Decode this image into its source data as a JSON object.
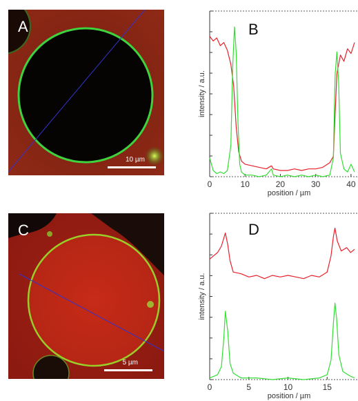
{
  "panels": {
    "a": {
      "letter": "A",
      "scalebar_label": "10 µm"
    },
    "b": {
      "letter": "B"
    },
    "c": {
      "letter": "C",
      "scalebar_label": "5 µm"
    },
    "d": {
      "letter": "D"
    }
  },
  "colors": {
    "red_channel": "#e8202a",
    "green_channel": "#33dd33",
    "line_profile": "#3333cc",
    "membrane": "#3fd23f"
  },
  "chart_data": [
    {
      "type": "line",
      "panel": "B",
      "title": "",
      "xlabel": "position / µm",
      "ylabel": "intensity / a.u.",
      "xlim": [
        0,
        41
      ],
      "xticks": [
        0,
        10,
        20,
        30,
        40
      ],
      "ytick_labels": false,
      "series": [
        {
          "color": "#e8202a",
          "x": [
            0,
            1,
            2,
            3,
            4,
            5,
            6,
            6.8,
            7.5,
            8.2,
            9,
            10,
            12,
            14,
            16,
            17.5,
            18,
            20,
            22,
            24,
            26,
            28,
            30,
            32,
            34,
            35,
            35.5,
            36,
            37,
            38,
            39,
            40,
            41
          ],
          "y": [
            0.9,
            0.87,
            0.89,
            0.84,
            0.86,
            0.81,
            0.72,
            0.58,
            0.32,
            0.16,
            0.1,
            0.08,
            0.07,
            0.06,
            0.05,
            0.07,
            0.05,
            0.04,
            0.04,
            0.05,
            0.04,
            0.05,
            0.05,
            0.06,
            0.09,
            0.13,
            0.4,
            0.66,
            0.78,
            0.74,
            0.82,
            0.79,
            0.86
          ]
        },
        {
          "color": "#33dd33",
          "x": [
            0,
            1,
            2,
            3,
            4,
            5,
            6,
            6.5,
            7,
            7.5,
            8,
            8.5,
            9,
            10,
            12,
            14,
            16,
            17.5,
            18,
            20,
            22,
            24,
            26,
            28,
            30,
            32,
            34,
            35,
            35.5,
            36,
            36.5,
            37,
            38,
            39,
            40,
            41
          ],
          "y": [
            0.12,
            0.04,
            0.02,
            0.03,
            0.02,
            0.04,
            0.2,
            0.7,
            0.96,
            0.8,
            0.35,
            0.08,
            0.03,
            0.01,
            0.01,
            0.0,
            0.01,
            0.05,
            0.01,
            0.0,
            0.01,
            0.0,
            0.01,
            0.0,
            0.01,
            0.0,
            0.01,
            0.12,
            0.65,
            0.8,
            0.6,
            0.15,
            0.05,
            0.03,
            0.08,
            0.03
          ]
        }
      ]
    },
    {
      "type": "line",
      "panel": "D",
      "title": "",
      "xlabel": "position / µm",
      "ylabel": "intensity / a.u.",
      "xlim": [
        0,
        18.5
      ],
      "xticks": [
        0,
        5,
        10,
        15
      ],
      "ytick_labels": false,
      "series": [
        {
          "color": "#e8202a",
          "x": [
            0,
            0.5,
            1,
            1.5,
            2,
            2.3,
            2.6,
            3,
            4,
            5,
            6,
            7,
            8,
            9,
            10,
            11,
            12,
            13,
            14,
            15,
            15.5,
            15.8,
            16,
            16.3,
            16.8,
            17.5,
            18,
            18.5
          ],
          "y": [
            0.74,
            0.76,
            0.78,
            0.82,
            0.9,
            0.83,
            0.73,
            0.66,
            0.65,
            0.63,
            0.64,
            0.62,
            0.64,
            0.63,
            0.64,
            0.63,
            0.62,
            0.64,
            0.63,
            0.66,
            0.76,
            0.88,
            0.93,
            0.85,
            0.79,
            0.81,
            0.78,
            0.8
          ]
        },
        {
          "color": "#33dd33",
          "x": [
            0,
            0.5,
            1,
            1.5,
            1.8,
            2,
            2.3,
            2.6,
            3,
            4,
            6,
            8,
            10,
            12,
            14,
            15,
            15.5,
            15.8,
            16,
            16.2,
            16.5,
            17,
            18,
            18.5
          ],
          "y": [
            0.01,
            0.02,
            0.03,
            0.08,
            0.25,
            0.42,
            0.3,
            0.1,
            0.04,
            0.01,
            0.01,
            0.0,
            0.01,
            0.0,
            0.01,
            0.03,
            0.12,
            0.35,
            0.47,
            0.38,
            0.15,
            0.05,
            0.02,
            0.01
          ]
        }
      ]
    }
  ]
}
